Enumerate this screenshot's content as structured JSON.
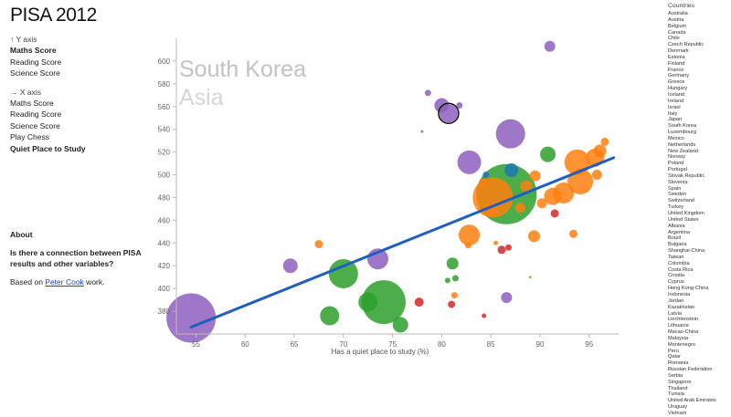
{
  "app_title": "PISA 2012",
  "y_axis": {
    "heading": "↑ Y axis",
    "options": [
      {
        "label": "Maths Score",
        "selected": true
      },
      {
        "label": "Reading Score",
        "selected": false
      },
      {
        "label": "Science Score",
        "selected": false
      }
    ]
  },
  "x_axis": {
    "heading": "→ X axis",
    "options": [
      {
        "label": "Maths Score",
        "selected": false
      },
      {
        "label": "Reading Score",
        "selected": false
      },
      {
        "label": "Science Score",
        "selected": false
      },
      {
        "label": "Play Chess",
        "selected": false
      },
      {
        "label": "Quiet Place to Study",
        "selected": true
      }
    ]
  },
  "about": {
    "heading": "About",
    "question": "Is there a connection between PISA results and other variables?",
    "credit_prefix": "Based on ",
    "credit_link": "Peter Cook",
    "credit_suffix": " work."
  },
  "countries": {
    "heading": "Countries",
    "list": [
      "Australia",
      "Austria",
      "Belgium",
      "Canada",
      "Chile",
      "Czech Republic",
      "Denmark",
      "Estonia",
      "Finland",
      "France",
      "Germany",
      "Greece",
      "Hungary",
      "Iceland",
      "Ireland",
      "Israel",
      "Italy",
      "Japan",
      "South Korea",
      "Luxembourg",
      "Mexico",
      "Netherlands",
      "New Zealand",
      "Norway",
      "Poland",
      "Portugal",
      "Slovak Republic",
      "Slovenia",
      "Spain",
      "Sweden",
      "Switzerland",
      "Turkey",
      "United Kingdom",
      "United States",
      "Albania",
      "Argentina",
      "Brazil",
      "Bulgaria",
      "Shanghai-China",
      "Taiwan",
      "Colombia",
      "Costa Rica",
      "Croatia",
      "Cyprus",
      "Hong Kong-China",
      "Indonesia",
      "Jordan",
      "Kazakhstan",
      "Latvia",
      "Liechtenstein",
      "Lithuania",
      "Macao-China",
      "Malaysia",
      "Montenegro",
      "Peru",
      "Qatar",
      "Romania",
      "Russian Federation",
      "Serbia",
      "Singapore",
      "Thailand",
      "Tunisia",
      "United Arab Emirates",
      "Uruguay",
      "Vietnam"
    ]
  },
  "colors": {
    "asia": "#8e5fbf",
    "europe": "#ff7f0e",
    "americas": "#2ca02c",
    "other": "#d62728",
    "oceania": "#1f77b4",
    "trend": "#1f5fbf",
    "highlight_ring": "#111111"
  },
  "chart_data": {
    "type": "scatter",
    "xlabel": "Has a quiet place to study (%)",
    "ylabel": "",
    "xlim": [
      53,
      98
    ],
    "ylim": [
      360,
      620
    ],
    "x_ticks": [
      55,
      60,
      65,
      70,
      75,
      80,
      85,
      90,
      95
    ],
    "y_ticks": [
      380,
      400,
      420,
      440,
      460,
      480,
      500,
      520,
      540,
      560,
      580,
      600
    ],
    "highlight": {
      "country": "South Korea",
      "region": "Asia"
    },
    "trend_line": {
      "x": [
        54.5,
        97.5
      ],
      "y": [
        366,
        515
      ]
    },
    "points": [
      {
        "x": 91.0,
        "y": 613,
        "r": 6,
        "g": "asia"
      },
      {
        "x": 78.6,
        "y": 572,
        "r": 3.5,
        "g": "asia"
      },
      {
        "x": 80.0,
        "y": 561,
        "r": 8,
        "g": "asia"
      },
      {
        "x": 81.8,
        "y": 561,
        "r": 3.5,
        "g": "asia"
      },
      {
        "x": 80.7,
        "y": 554,
        "r": 10,
        "g": "asia",
        "ring": true
      },
      {
        "x": 87.0,
        "y": 536,
        "r": 16,
        "g": "asia"
      },
      {
        "x": 82.8,
        "y": 511,
        "r": 13,
        "g": "asia"
      },
      {
        "x": 73.5,
        "y": 426,
        "r": 11.5,
        "g": "asia"
      },
      {
        "x": 64.6,
        "y": 420,
        "r": 8,
        "g": "asia"
      },
      {
        "x": 54.5,
        "y": 374,
        "r": 27,
        "g": "asia"
      },
      {
        "x": 86.6,
        "y": 392,
        "r": 6,
        "g": "asia"
      },
      {
        "x": 78.0,
        "y": 538,
        "r": 1.5,
        "g": "asia"
      },
      {
        "x": 90.8,
        "y": 518,
        "r": 8.5,
        "g": "americas"
      },
      {
        "x": 86.6,
        "y": 483,
        "r": 33,
        "g": "americas"
      },
      {
        "x": 70.0,
        "y": 413,
        "r": 16,
        "g": "americas"
      },
      {
        "x": 74.1,
        "y": 388,
        "r": 24,
        "g": "americas"
      },
      {
        "x": 72.5,
        "y": 388,
        "r": 10.5,
        "g": "americas"
      },
      {
        "x": 68.6,
        "y": 376,
        "r": 10.5,
        "g": "americas"
      },
      {
        "x": 75.8,
        "y": 368,
        "r": 8.5,
        "g": "americas"
      },
      {
        "x": 81.1,
        "y": 422,
        "r": 6.5,
        "g": "americas"
      },
      {
        "x": 81.4,
        "y": 409,
        "r": 3.5,
        "g": "americas"
      },
      {
        "x": 80.6,
        "y": 407,
        "r": 3,
        "g": "americas"
      },
      {
        "x": 93.8,
        "y": 511,
        "r": 14,
        "g": "europe"
      },
      {
        "x": 95.6,
        "y": 515,
        "r": 10,
        "g": "europe"
      },
      {
        "x": 96.1,
        "y": 521,
        "r": 7,
        "g": "europe"
      },
      {
        "x": 96.6,
        "y": 529,
        "r": 4.5,
        "g": "europe"
      },
      {
        "x": 94.1,
        "y": 494,
        "r": 14,
        "g": "europe"
      },
      {
        "x": 95.8,
        "y": 500,
        "r": 5.5,
        "g": "europe"
      },
      {
        "x": 92.4,
        "y": 484,
        "r": 11.5,
        "g": "europe"
      },
      {
        "x": 89.5,
        "y": 499,
        "r": 6,
        "g": "europe"
      },
      {
        "x": 91.3,
        "y": 481,
        "r": 9.5,
        "g": "europe"
      },
      {
        "x": 90.2,
        "y": 475,
        "r": 5.5,
        "g": "europe"
      },
      {
        "x": 88.6,
        "y": 490,
        "r": 6.5,
        "g": "europe"
      },
      {
        "x": 85.2,
        "y": 480,
        "r": 22,
        "g": "europe"
      },
      {
        "x": 84.2,
        "y": 493,
        "r": 4.5,
        "g": "europe"
      },
      {
        "x": 85.0,
        "y": 469,
        "r": 7,
        "g": "europe"
      },
      {
        "x": 88.0,
        "y": 471,
        "r": 5.5,
        "g": "europe"
      },
      {
        "x": 82.8,
        "y": 447,
        "r": 11.5,
        "g": "europe"
      },
      {
        "x": 89.4,
        "y": 446,
        "r": 6.5,
        "g": "europe"
      },
      {
        "x": 93.4,
        "y": 448,
        "r": 4.5,
        "g": "europe"
      },
      {
        "x": 67.5,
        "y": 439,
        "r": 4.5,
        "g": "europe"
      },
      {
        "x": 85.5,
        "y": 440,
        "r": 2.5,
        "g": "europe"
      },
      {
        "x": 82.7,
        "y": 438,
        "r": 3.5,
        "g": "europe"
      },
      {
        "x": 81.3,
        "y": 394,
        "r": 3.5,
        "g": "europe"
      },
      {
        "x": 89.0,
        "y": 410,
        "r": 1.5,
        "g": "europe"
      },
      {
        "x": 87.1,
        "y": 504,
        "r": 7.5,
        "g": "oceania"
      },
      {
        "x": 84.5,
        "y": 500,
        "r": 3.5,
        "g": "oceania"
      },
      {
        "x": 86.1,
        "y": 434,
        "r": 4.5,
        "g": "other"
      },
      {
        "x": 86.8,
        "y": 436,
        "r": 3.5,
        "g": "other"
      },
      {
        "x": 91.5,
        "y": 466,
        "r": 4.5,
        "g": "other"
      },
      {
        "x": 77.7,
        "y": 388,
        "r": 5,
        "g": "other"
      },
      {
        "x": 81.0,
        "y": 386,
        "r": 4,
        "g": "other"
      },
      {
        "x": 84.3,
        "y": 376,
        "r": 2.5,
        "g": "other"
      }
    ]
  }
}
